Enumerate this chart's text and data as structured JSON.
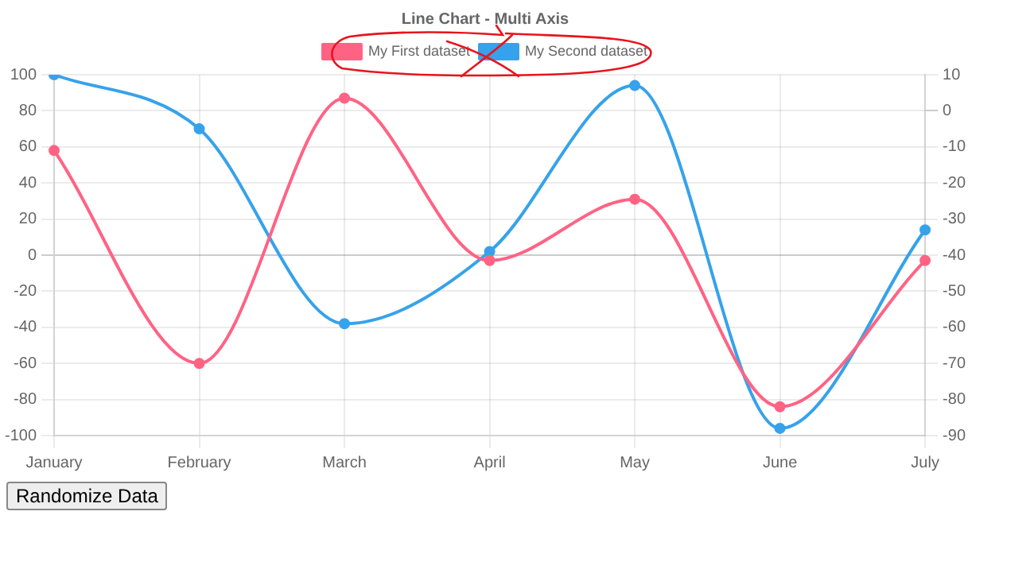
{
  "chart_data": {
    "type": "line",
    "title": "Line Chart - Multi Axis",
    "categories": [
      "January",
      "February",
      "March",
      "April",
      "May",
      "June",
      "July"
    ],
    "series": [
      {
        "name": "My First dataset",
        "color": "#ff6384",
        "values": [
          58,
          -60,
          87,
          -3,
          31,
          -84,
          -3
        ]
      },
      {
        "name": "My Second dataset",
        "color": "#36a2eb",
        "axis": "y2",
        "values": [
          10,
          -5,
          -59,
          -39,
          7,
          -88,
          -33
        ]
      }
    ],
    "ylim": [
      -100,
      100
    ],
    "yticks": [
      -100,
      -80,
      -60,
      -40,
      -20,
      0,
      20,
      40,
      60,
      80,
      100
    ],
    "y2lim": [
      -90,
      10
    ],
    "y2ticks": [
      -90,
      -80,
      -70,
      -60,
      -50,
      -40,
      -30,
      -20,
      -10,
      0,
      10
    ],
    "grid": true,
    "legend": "top",
    "marker": "circle",
    "line_style": "solid",
    "annotations": [
      "Randomize Data"
    ]
  }
}
